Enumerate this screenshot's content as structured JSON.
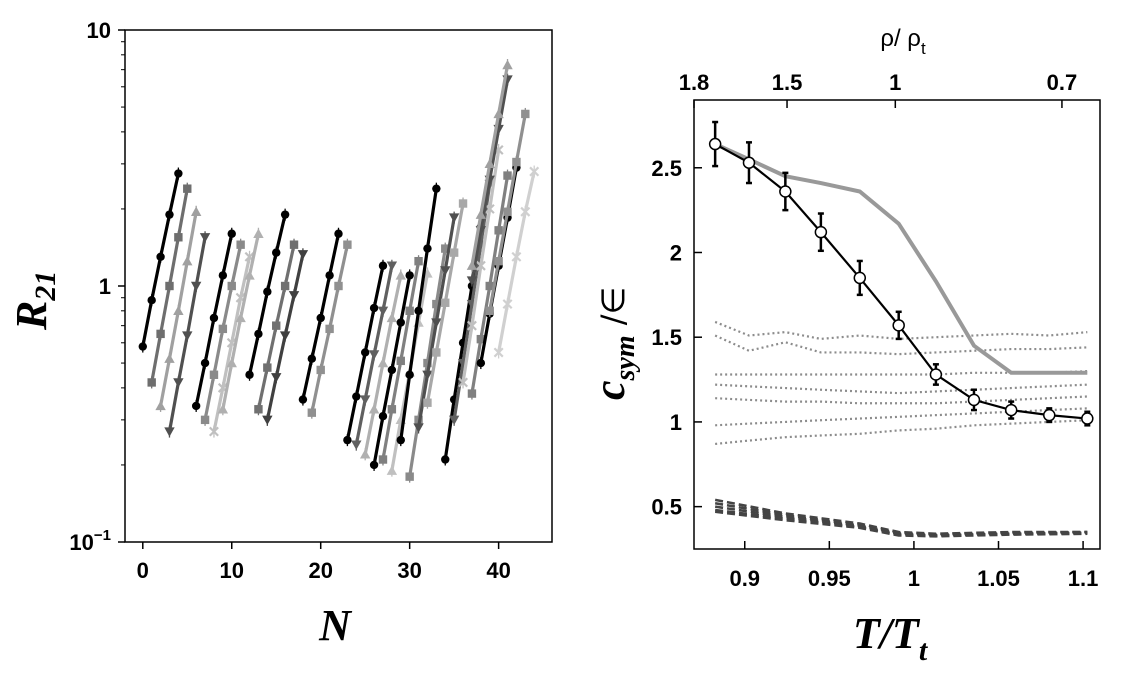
{
  "chart_data": [
    {
      "type": "scatter",
      "scale": "log-y",
      "xlabel": "N",
      "ylabel": "R",
      "ylabel_sub": "21",
      "xlim": [
        -2,
        46
      ],
      "ylim": [
        0.1,
        10
      ],
      "xticks": [
        0,
        10,
        20,
        30,
        40
      ],
      "yticks": [
        {
          "value": 0.1,
          "label": "10",
          "sup": "−1"
        },
        {
          "value": 1,
          "label": "1",
          "sup": ""
        },
        {
          "value": 10,
          "label": "10",
          "sup": ""
        }
      ],
      "series": [
        {
          "name": "line-1",
          "color": "#000000",
          "marker": "circle",
          "x": [
            0,
            1,
            2,
            3,
            4
          ],
          "y": [
            0.58,
            0.88,
            1.3,
            1.9,
            2.75
          ]
        },
        {
          "name": "line-2",
          "color": "#6e6e6e",
          "marker": "square",
          "x": [
            1,
            2,
            3,
            4,
            5
          ],
          "y": [
            0.42,
            0.65,
            1.0,
            1.55,
            2.4
          ]
        },
        {
          "name": "line-3",
          "color": "#a0a0a0",
          "marker": "triangle-up",
          "x": [
            2,
            3,
            4,
            5,
            6
          ],
          "y": [
            0.34,
            0.52,
            0.8,
            1.25,
            1.95
          ]
        },
        {
          "name": "line-4",
          "color": "#505050",
          "marker": "triangle-down",
          "x": [
            3,
            4,
            5,
            6,
            7
          ],
          "y": [
            0.27,
            0.42,
            0.64,
            1.0,
            1.55
          ]
        },
        {
          "name": "line-5",
          "color": "#000000",
          "marker": "circle",
          "x": [
            6,
            7,
            8,
            9,
            10
          ],
          "y": [
            0.34,
            0.5,
            0.75,
            1.1,
            1.6
          ]
        },
        {
          "name": "line-6",
          "color": "#8a8a8a",
          "marker": "square",
          "x": [
            7,
            8,
            9,
            10,
            11
          ],
          "y": [
            0.3,
            0.45,
            0.68,
            1.0,
            1.45
          ]
        },
        {
          "name": "line-7",
          "color": "#c0c0c0",
          "marker": "x",
          "x": [
            8,
            9,
            10,
            11,
            12
          ],
          "y": [
            0.27,
            0.4,
            0.6,
            0.9,
            1.3
          ]
        },
        {
          "name": "line-8",
          "color": "#b0b0b0",
          "marker": "triangle-up",
          "x": [
            9,
            10,
            11,
            12,
            13
          ],
          "y": [
            0.33,
            0.5,
            0.75,
            1.1,
            1.6
          ]
        },
        {
          "name": "line-9",
          "color": "#000000",
          "marker": "circle",
          "x": [
            12,
            13,
            14,
            15,
            16
          ],
          "y": [
            0.45,
            0.65,
            0.95,
            1.35,
            1.9
          ]
        },
        {
          "name": "line-10",
          "color": "#707070",
          "marker": "square",
          "x": [
            13,
            14,
            15,
            16,
            17
          ],
          "y": [
            0.33,
            0.48,
            0.7,
            1.0,
            1.45
          ]
        },
        {
          "name": "line-11",
          "color": "#404040",
          "marker": "triangle-down",
          "x": [
            14,
            15,
            16,
            17,
            18
          ],
          "y": [
            0.3,
            0.44,
            0.64,
            0.92,
            1.33
          ]
        },
        {
          "name": "line-12",
          "color": "#000000",
          "marker": "circle",
          "x": [
            18,
            19,
            20,
            21,
            22
          ],
          "y": [
            0.36,
            0.52,
            0.75,
            1.1,
            1.6
          ]
        },
        {
          "name": "line-13",
          "color": "#909090",
          "marker": "square",
          "x": [
            19,
            20,
            21,
            22,
            23
          ],
          "y": [
            0.32,
            0.47,
            0.68,
            1.0,
            1.45
          ]
        },
        {
          "name": "line-14",
          "color": "#000000",
          "marker": "circle",
          "x": [
            23,
            24,
            25,
            26,
            27
          ],
          "y": [
            0.25,
            0.37,
            0.55,
            0.82,
            1.2
          ]
        },
        {
          "name": "line-15",
          "color": "#606060",
          "marker": "triangle-down",
          "x": [
            24,
            25,
            26,
            27,
            28
          ],
          "y": [
            0.24,
            0.36,
            0.54,
            0.8,
            1.2
          ]
        },
        {
          "name": "line-16",
          "color": "#b0b0b0",
          "marker": "triangle-up",
          "x": [
            25,
            26,
            27,
            28,
            29
          ],
          "y": [
            0.22,
            0.33,
            0.5,
            0.75,
            1.1
          ]
        },
        {
          "name": "line-17",
          "color": "#000000",
          "marker": "circle",
          "x": [
            26,
            27,
            28,
            29,
            30
          ],
          "y": [
            0.2,
            0.31,
            0.47,
            0.72,
            1.1
          ]
        },
        {
          "name": "line-18",
          "color": "#808080",
          "marker": "square",
          "x": [
            27,
            28,
            29,
            30,
            31
          ],
          "y": [
            0.21,
            0.33,
            0.51,
            0.8,
            1.25
          ]
        },
        {
          "name": "line-19",
          "color": "#c0c0c0",
          "marker": "triangle-up",
          "x": [
            28,
            29,
            30,
            31,
            32
          ],
          "y": [
            0.19,
            0.3,
            0.46,
            0.72,
            1.12
          ]
        },
        {
          "name": "line-20",
          "color": "#000000",
          "marker": "circle",
          "x": [
            29,
            30,
            31,
            32,
            33
          ],
          "y": [
            0.25,
            0.45,
            0.8,
            1.4,
            2.4
          ]
        },
        {
          "name": "line-21",
          "color": "#8a8a8a",
          "marker": "square",
          "x": [
            30,
            31,
            32,
            33,
            34
          ],
          "y": [
            0.18,
            0.3,
            0.5,
            0.85,
            1.4
          ]
        },
        {
          "name": "line-22",
          "color": "#505050",
          "marker": "triangle-down",
          "x": [
            31,
            32,
            33,
            34,
            35
          ],
          "y": [
            0.28,
            0.45,
            0.72,
            1.15,
            1.85
          ]
        },
        {
          "name": "line-23",
          "color": "#a8a8a8",
          "marker": "square",
          "x": [
            32,
            33,
            34,
            35,
            36
          ],
          "y": [
            0.35,
            0.55,
            0.86,
            1.35,
            2.1
          ]
        },
        {
          "name": "line-24",
          "color": "#000000",
          "marker": "circle",
          "x": [
            34,
            35,
            36,
            37,
            38
          ],
          "y": [
            0.21,
            0.36,
            0.6,
            1.0,
            1.7
          ]
        },
        {
          "name": "line-25",
          "color": "#606060",
          "marker": "triangle-down",
          "x": [
            35,
            36,
            37,
            38,
            39
          ],
          "y": [
            0.3,
            0.5,
            0.85,
            1.45,
            2.5
          ]
        },
        {
          "name": "line-26",
          "color": "#c0c0c0",
          "marker": "x",
          "x": [
            36,
            37,
            38,
            39,
            40
          ],
          "y": [
            0.42,
            0.7,
            1.2,
            2.0,
            3.4
          ]
        },
        {
          "name": "line-27",
          "color": "#808080",
          "marker": "square",
          "x": [
            37,
            38,
            39,
            40,
            41
          ],
          "y": [
            0.38,
            0.62,
            1.0,
            1.65,
            2.7
          ]
        },
        {
          "name": "line-28",
          "color": "#000000",
          "marker": "circle",
          "x": [
            38,
            39,
            40,
            41,
            42
          ],
          "y": [
            0.5,
            0.78,
            1.2,
            1.85,
            2.9
          ]
        },
        {
          "name": "line-29",
          "color": "#909090",
          "marker": "square",
          "x": [
            39,
            40,
            41,
            42,
            43
          ],
          "y": [
            0.8,
            1.25,
            1.95,
            3.05,
            4.7
          ]
        },
        {
          "name": "line-30",
          "color": "#505050",
          "marker": "triangle-down",
          "x": [
            37,
            38,
            39,
            40,
            41
          ],
          "y": [
            1.05,
            1.65,
            2.6,
            4.1,
            6.4
          ]
        },
        {
          "name": "line-31",
          "color": "#a0a0a0",
          "marker": "triangle-up",
          "x": [
            37,
            38,
            39,
            40,
            41
          ],
          "y": [
            1.2,
            1.9,
            3.0,
            4.7,
            7.3
          ]
        },
        {
          "name": "line-32",
          "color": "#d0d0d0",
          "marker": "x",
          "x": [
            40,
            41,
            42,
            43,
            44
          ],
          "y": [
            0.55,
            0.85,
            1.3,
            1.95,
            2.8
          ]
        }
      ]
    },
    {
      "type": "line",
      "xlabel": "T/T",
      "xlabel_sub": "t",
      "ylabel": "c",
      "ylabel_sub": "sym",
      "ylabel_suffix": " /∈",
      "top_label": "ρ/ ρ",
      "top_label_sub": "t",
      "xlim": [
        0.87,
        1.11
      ],
      "ylim": [
        0.25,
        2.9
      ],
      "xticks": [
        {
          "value": 0.9,
          "label": "0.9"
        },
        {
          "value": 0.95,
          "label": "0.95"
        },
        {
          "value": 1.0,
          "label": "1"
        },
        {
          "value": 1.05,
          "label": "1.05"
        },
        {
          "value": 1.1,
          "label": "1.1"
        }
      ],
      "yticks": [
        {
          "value": 0.5,
          "label": "0.5"
        },
        {
          "value": 1.0,
          "label": "1"
        },
        {
          "value": 1.5,
          "label": "1.5"
        },
        {
          "value": 2.0,
          "label": "2"
        },
        {
          "value": 2.5,
          "label": "2.5"
        }
      ],
      "top_ticks": [
        {
          "value": 0.87,
          "label": "1.8"
        },
        {
          "value": 0.925,
          "label": "1.5"
        },
        {
          "value": 0.989,
          "label": "1"
        },
        {
          "value": 1.0875,
          "label": "0.7"
        }
      ],
      "main_series": {
        "name": "simulation",
        "color": "#000000",
        "marker": "open-circle",
        "x": [
          0.8825,
          0.9025,
          0.924,
          0.945,
          0.968,
          0.991,
          1.013,
          1.0355,
          1.0575,
          1.08,
          1.1025
        ],
        "y": [
          2.64,
          2.53,
          2.36,
          2.12,
          1.85,
          1.57,
          1.28,
          1.13,
          1.07,
          1.04,
          1.02
        ],
        "err": [
          0.13,
          0.12,
          0.11,
          0.11,
          0.1,
          0.08,
          0.06,
          0.06,
          0.05,
          0.04,
          0.04
        ]
      },
      "gray_series": {
        "name": "gray-curve",
        "color": "#999999",
        "x": [
          0.8825,
          0.9025,
          0.924,
          0.945,
          0.968,
          0.991,
          1.013,
          1.0355,
          1.0575,
          1.08,
          1.1025
        ],
        "y": [
          2.64,
          2.55,
          2.45,
          2.41,
          2.36,
          2.17,
          1.83,
          1.45,
          1.29,
          1.29,
          1.29
        ]
      },
      "dotted_series": [
        {
          "name": "dotted-1",
          "x": [
            0.8825,
            0.9025,
            0.924,
            0.945,
            0.968,
            0.991,
            1.013,
            1.0355,
            1.0575,
            1.08,
            1.1025
          ],
          "y": [
            1.59,
            1.51,
            1.53,
            1.49,
            1.51,
            1.49,
            1.5,
            1.51,
            1.52,
            1.51,
            1.53
          ]
        },
        {
          "name": "dotted-2",
          "x": [
            0.8825,
            0.9025,
            0.924,
            0.945,
            0.968,
            0.991,
            1.013,
            1.0355,
            1.0575,
            1.08,
            1.1025
          ],
          "y": [
            1.51,
            1.42,
            1.47,
            1.41,
            1.41,
            1.4,
            1.41,
            1.42,
            1.43,
            1.43,
            1.44
          ]
        },
        {
          "name": "dotted-3",
          "x": [
            0.8825,
            0.9025,
            0.924,
            0.945,
            0.968,
            0.991,
            1.013,
            1.0355,
            1.0575,
            1.08,
            1.1025
          ],
          "y": [
            1.28,
            1.28,
            1.28,
            1.28,
            1.28,
            1.28,
            1.28,
            1.29,
            1.29,
            1.29,
            1.3
          ]
        },
        {
          "name": "dotted-4",
          "x": [
            0.8825,
            0.9025,
            0.924,
            0.945,
            0.968,
            0.991,
            1.013,
            1.0355,
            1.0575,
            1.08,
            1.1025
          ],
          "y": [
            1.22,
            1.21,
            1.2,
            1.19,
            1.18,
            1.17,
            1.18,
            1.19,
            1.2,
            1.21,
            1.22
          ]
        },
        {
          "name": "dotted-5",
          "x": [
            0.8825,
            0.9025,
            0.924,
            0.945,
            0.968,
            0.991,
            1.013,
            1.0355,
            1.0575,
            1.08,
            1.1025
          ],
          "y": [
            1.14,
            1.13,
            1.12,
            1.12,
            1.11,
            1.11,
            1.11,
            1.12,
            1.13,
            1.14,
            1.15
          ]
        },
        {
          "name": "dotted-6",
          "x": [
            0.8825,
            0.9025,
            0.924,
            0.945,
            0.968,
            0.991,
            1.013,
            1.0355,
            1.0575,
            1.08,
            1.1025
          ],
          "y": [
            0.98,
            0.99,
            1.0,
            1.01,
            1.02,
            1.03,
            1.04,
            1.05,
            1.06,
            1.07,
            1.08
          ]
        },
        {
          "name": "dotted-7",
          "x": [
            0.8825,
            0.9025,
            0.924,
            0.945,
            0.968,
            0.991,
            1.013,
            1.0355,
            1.0575,
            1.08,
            1.1025
          ],
          "y": [
            0.87,
            0.89,
            0.91,
            0.92,
            0.93,
            0.95,
            0.96,
            0.98,
            0.99,
            1.0,
            1.01
          ]
        }
      ],
      "dashed_series": [
        {
          "name": "dashed-1",
          "x": [
            0.8825,
            0.924,
            0.968,
            0.991,
            1.013,
            1.0575,
            1.1025
          ],
          "y": [
            0.54,
            0.46,
            0.4,
            0.35,
            0.34,
            0.35,
            0.35
          ]
        },
        {
          "name": "dashed-2",
          "x": [
            0.8825,
            0.924,
            0.968,
            0.991,
            1.013,
            1.0575,
            1.1025
          ],
          "y": [
            0.52,
            0.45,
            0.39,
            0.345,
            0.335,
            0.345,
            0.35
          ]
        },
        {
          "name": "dashed-3",
          "x": [
            0.8825,
            0.924,
            0.968,
            0.991,
            1.013,
            1.0575,
            1.1025
          ],
          "y": [
            0.5,
            0.44,
            0.385,
            0.34,
            0.33,
            0.34,
            0.345
          ]
        },
        {
          "name": "dashed-4",
          "x": [
            0.8825,
            0.924,
            0.968,
            0.991,
            1.013,
            1.0575,
            1.1025
          ],
          "y": [
            0.48,
            0.43,
            0.38,
            0.335,
            0.33,
            0.34,
            0.345
          ]
        },
        {
          "name": "dashed-5",
          "x": [
            0.8825,
            0.924,
            0.968,
            0.991,
            1.013,
            1.0575,
            1.1025
          ],
          "y": [
            0.47,
            0.42,
            0.375,
            0.33,
            0.325,
            0.335,
            0.34
          ]
        }
      ]
    }
  ]
}
